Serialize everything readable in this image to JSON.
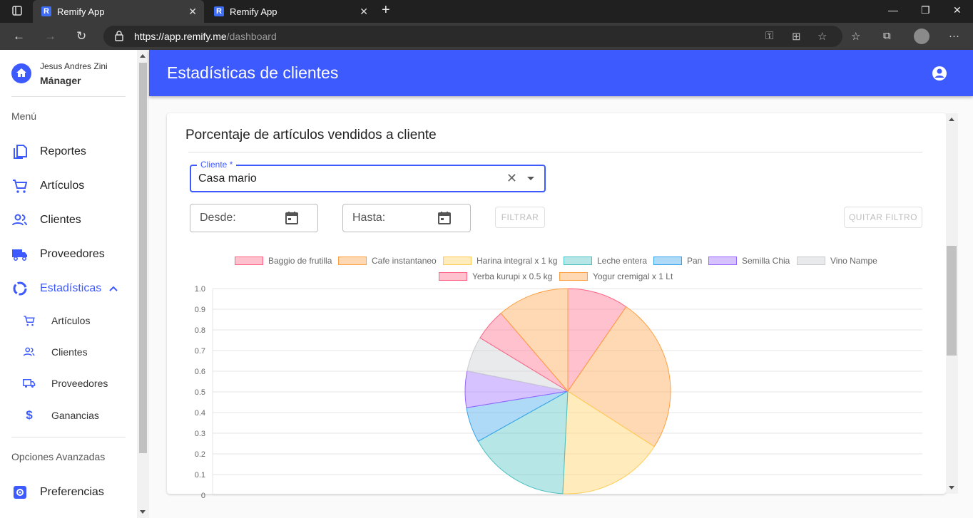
{
  "browser": {
    "tabs": [
      {
        "title": "Remify App",
        "favicon": "R"
      },
      {
        "title": "Remify App",
        "favicon": "R"
      }
    ],
    "url_host": "https://app.remify.me",
    "url_path": "/dashboard"
  },
  "user": {
    "name": "Jesus Andres Zini",
    "role": "Mánager"
  },
  "sidebar": {
    "menu_label": "Menú",
    "items": [
      {
        "label": "Reportes",
        "icon": "document-copy-icon"
      },
      {
        "label": "Artículos",
        "icon": "cart-icon"
      },
      {
        "label": "Clientes",
        "icon": "people-icon"
      },
      {
        "label": "Proveedores",
        "icon": "truck-icon"
      },
      {
        "label": "Estadísticas",
        "icon": "donut-chart-icon"
      }
    ],
    "subitems": [
      {
        "label": "Artículos",
        "icon": "cart-icon"
      },
      {
        "label": "Clientes",
        "icon": "people-icon"
      },
      {
        "label": "Proveedores",
        "icon": "truck-icon"
      },
      {
        "label": "Ganancias",
        "icon": "dollar-icon"
      }
    ],
    "advanced_label": "Opciones Avanzadas",
    "preferences": {
      "label": "Preferencias",
      "icon": "gear-icon"
    }
  },
  "header": {
    "title": "Estadísticas de clientes"
  },
  "card": {
    "title": "Porcentaje de artículos vendidos a cliente",
    "client_field": {
      "label": "Cliente *",
      "value": "Casa mario"
    },
    "desde_label": "Desde:",
    "hasta_label": "Hasta:",
    "filter_button": "FILTRAR",
    "clear_filter_button": "QUITAR FILTRO"
  },
  "colors": {
    "accent": "#3d5afe",
    "sidebar_active": "#3d5afe"
  },
  "chart_data": {
    "type": "pie",
    "title": "",
    "legend_position": "top",
    "labels": [
      "Baggio de frutilla",
      "Cafe instantaneo",
      "Harina integral x 1 kg",
      "Leche entera",
      "Pan",
      "Semilla Chia",
      "Vino Nampe",
      "Yerba kurupi x 0.5 kg",
      "Yogur cremigal x 1 Lt"
    ],
    "values": [
      9.2,
      23.4,
      16.0,
      15.4,
      5.3,
      5.5,
      5.3,
      4.8,
      10.8
    ],
    "colors": [
      "#ff6384",
      "#ff9f40",
      "#ffcd56",
      "#4bc0c0",
      "#36a2eb",
      "#9966ff",
      "#c9cbcf",
      "#ff6384",
      "#ff9f40"
    ],
    "y_ticks": [
      "1.0",
      "0.9",
      "0.8",
      "0.7",
      "0.6",
      "0.5",
      "0.4",
      "0.3",
      "0.2",
      "0.1",
      "0"
    ],
    "ylim": [
      0,
      1
    ]
  }
}
